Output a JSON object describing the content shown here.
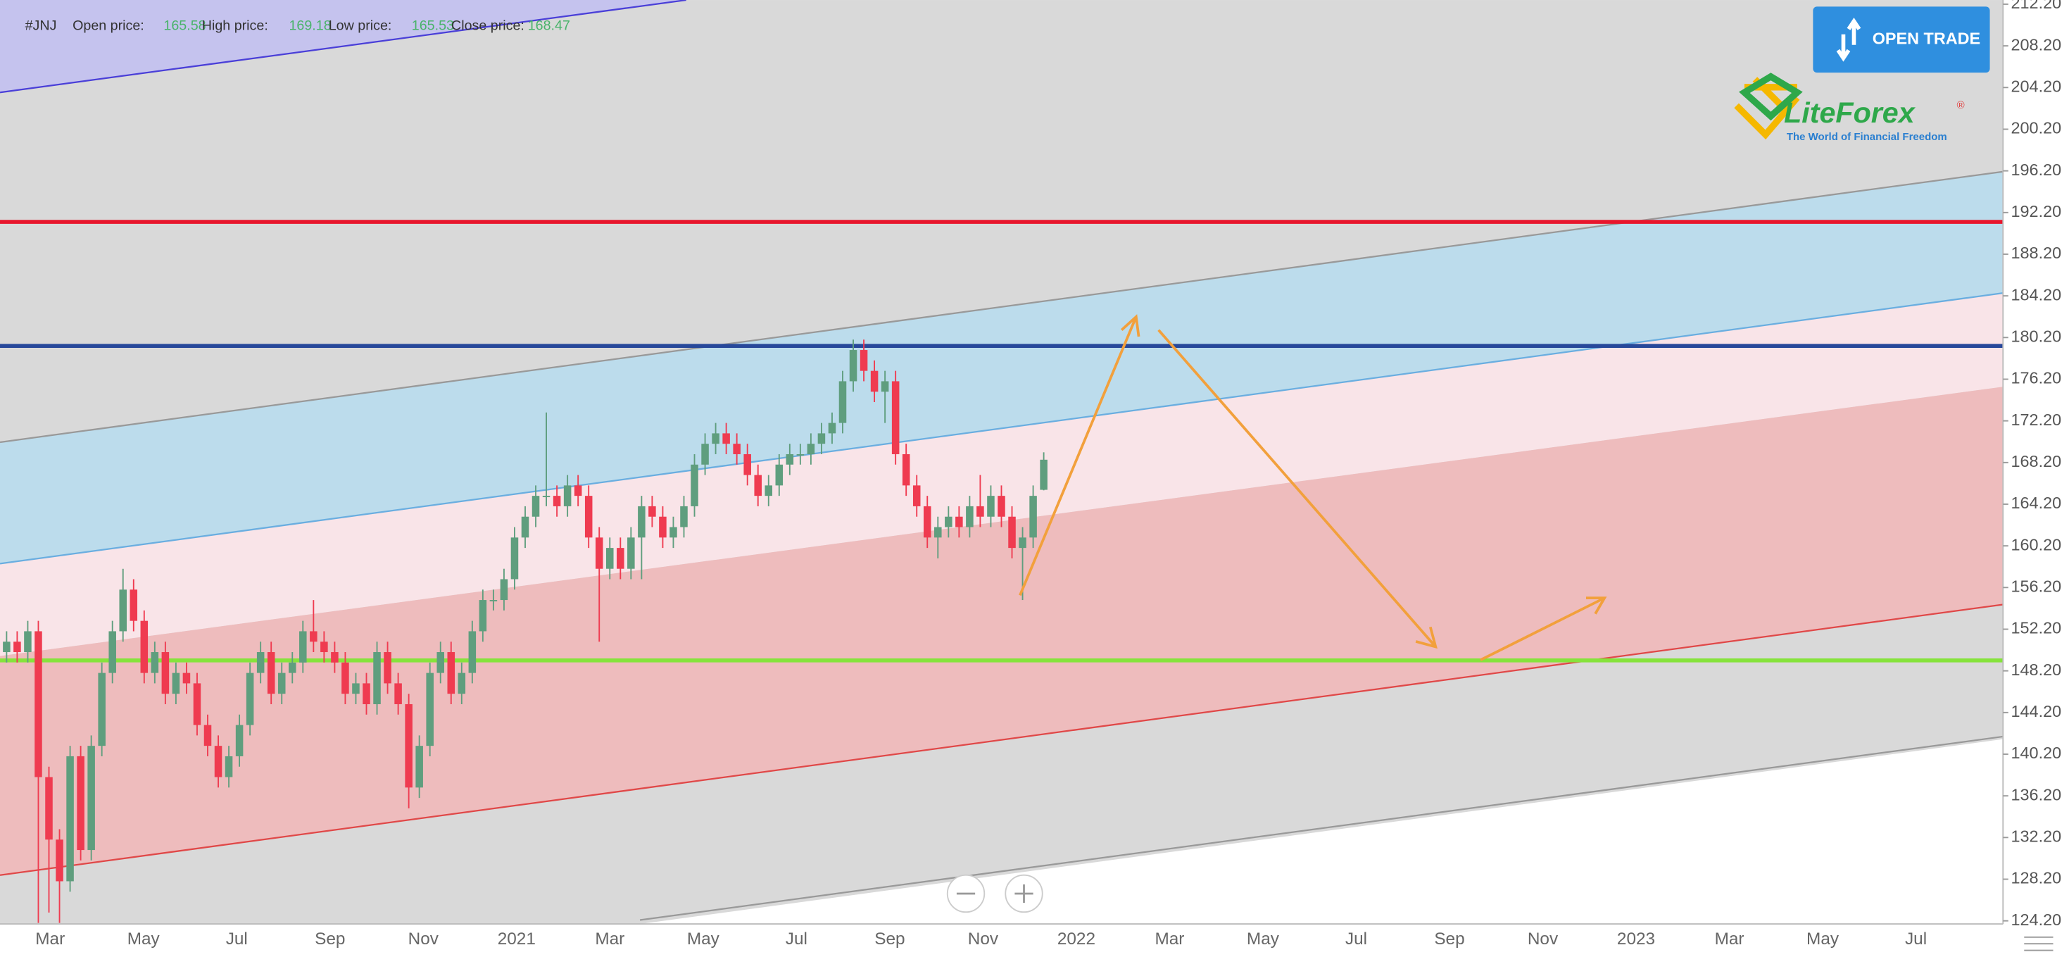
{
  "header": {
    "symbol": "#JNJ",
    "fields": [
      {
        "label": "Open price:"
      },
      {
        "label": "High price:"
      },
      {
        "label": "Low price:"
      },
      {
        "label": "Close price:"
      }
    ]
  },
  "button": "OPEN TRADE",
  "logo": {
    "name": "LiteForex",
    "mark": "®",
    "tagline": "The World of Financial Freedom"
  },
  "chart_data": {
    "type": "candlestick",
    "open": [
      150,
      151,
      150,
      152,
      138,
      132,
      128,
      140,
      131,
      141,
      148,
      152,
      156,
      153,
      148,
      150,
      146,
      148,
      147,
      143,
      141,
      138,
      140,
      143,
      148,
      150,
      146,
      148,
      149,
      152,
      151,
      150,
      149,
      146,
      147,
      145,
      150,
      147,
      145,
      137,
      141,
      148,
      150,
      146,
      148,
      152,
      155,
      155,
      157,
      161,
      163,
      165,
      165,
      164,
      166,
      165,
      161,
      158,
      160,
      158,
      161,
      164,
      163,
      161,
      162,
      164,
      168,
      170,
      171,
      170,
      169,
      167,
      165,
      166,
      168,
      169,
      169,
      170,
      171,
      172,
      176,
      179,
      177,
      175,
      176,
      169,
      166,
      164,
      161,
      162,
      163,
      162,
      164,
      163,
      165,
      163,
      160,
      161,
      165.58
    ],
    "high": [
      152,
      152,
      153,
      153,
      139,
      133,
      141,
      141,
      142,
      149,
      153,
      158,
      157,
      154,
      151,
      151,
      149,
      149,
      148,
      144,
      142,
      141,
      144,
      149,
      151,
      151,
      149,
      150,
      153,
      155,
      152,
      151,
      150,
      148,
      148,
      151,
      151,
      148,
      146,
      142,
      149,
      151,
      151,
      149,
      153,
      156,
      156,
      158,
      162,
      164,
      166,
      173,
      166,
      167,
      167,
      166,
      162,
      161,
      161,
      162,
      165,
      165,
      164,
      163,
      165,
      169,
      171,
      172,
      172,
      171,
      170,
      168,
      167,
      169,
      170,
      170,
      171,
      172,
      173,
      177,
      180,
      180,
      178,
      177,
      177,
      170,
      167,
      165,
      163,
      164,
      164,
      165,
      167,
      166,
      166,
      164,
      162,
      166,
      169.18
    ],
    "low": [
      149,
      149,
      149,
      124,
      125,
      124,
      127,
      130,
      130,
      140,
      147,
      151,
      152,
      147,
      147,
      145,
      145,
      146,
      142,
      140,
      137,
      137,
      139,
      142,
      147,
      145,
      145,
      147,
      148,
      150,
      149,
      148,
      145,
      145,
      144,
      144,
      146,
      144,
      135,
      136,
      140,
      147,
      145,
      145,
      147,
      151,
      154,
      154,
      156,
      160,
      162,
      164,
      163,
      163,
      164,
      160,
      151,
      157,
      157,
      157,
      157,
      162,
      160,
      160,
      161,
      163,
      167,
      169,
      169,
      168,
      166,
      164,
      164,
      165,
      167,
      168,
      168,
      169,
      170,
      171,
      175,
      176,
      174,
      172,
      168,
      165,
      163,
      160,
      159,
      161,
      161,
      161,
      162,
      162,
      162,
      159,
      155,
      160,
      165.53
    ],
    "close": [
      151,
      150,
      152,
      138,
      132,
      128,
      140,
      131,
      141,
      148,
      152,
      156,
      153,
      148,
      150,
      146,
      148,
      147,
      143,
      141,
      138,
      140,
      143,
      148,
      150,
      146,
      148,
      149,
      152,
      151,
      150,
      149,
      146,
      147,
      145,
      150,
      147,
      145,
      137,
      141,
      148,
      150,
      146,
      148,
      152,
      155,
      155,
      157,
      161,
      163,
      165,
      165,
      164,
      166,
      165,
      161,
      158,
      160,
      158,
      161,
      164,
      163,
      161,
      162,
      164,
      168,
      170,
      171,
      170,
      169,
      167,
      165,
      166,
      168,
      169,
      169,
      170,
      171,
      172,
      176,
      179,
      177,
      175,
      176,
      169,
      166,
      164,
      161,
      162,
      163,
      162,
      164,
      163,
      165,
      163,
      160,
      161,
      165,
      168.47
    ],
    "up_color": "#5f9e7e",
    "down_color": "#ef3b50",
    "levels": [
      {
        "value": 191.3,
        "color": "#e8162c"
      },
      {
        "value": 179.4,
        "color": "#27489a"
      },
      {
        "value": 149.2,
        "color": "#86e33c"
      }
    ],
    "x_axis_labels": [
      "Mar",
      "May",
      "Jul",
      "Sep",
      "Nov",
      "2021",
      "Mar",
      "May",
      "Jul",
      "Sep",
      "Nov",
      "2022",
      "Mar",
      "May",
      "Jul",
      "Sep",
      "Nov",
      "2023",
      "Mar",
      "May",
      "Jul"
    ],
    "ylim": [
      123.9,
      212.6
    ],
    "yticks": [
      {
        "value": 124.2,
        "label": "124.20"
      },
      {
        "value": 128.2,
        "label": "128.20"
      },
      {
        "value": 132.2,
        "label": "132.20"
      },
      {
        "value": 136.2,
        "label": "136.20"
      },
      {
        "value": 140.2,
        "label": "140.20"
      },
      {
        "value": 144.2,
        "label": "144.20"
      },
      {
        "value": 148.2,
        "label": "148.20"
      },
      {
        "value": 152.2,
        "label": "152.20"
      },
      {
        "value": 156.2,
        "label": "156.20"
      },
      {
        "value": 160.2,
        "label": "160.20"
      },
      {
        "value": 164.2,
        "label": "164.20"
      },
      {
        "value": 168.2,
        "label": "168.20"
      },
      {
        "value": 172.2,
        "label": "172.20"
      },
      {
        "value": 176.2,
        "label": "176.20"
      },
      {
        "value": 180.2,
        "label": "180.20"
      },
      {
        "value": 184.2,
        "label": "184.20"
      },
      {
        "value": 188.2,
        "label": "188.20"
      },
      {
        "value": 192.2,
        "label": "192.20"
      },
      {
        "value": 196.2,
        "label": "196.20"
      },
      {
        "value": 200.2,
        "label": "200.20"
      },
      {
        "value": 204.2,
        "label": "204.20"
      },
      {
        "value": 208.2,
        "label": "208.20"
      },
      {
        "value": 212.2,
        "label": "212.20"
      }
    ]
  }
}
